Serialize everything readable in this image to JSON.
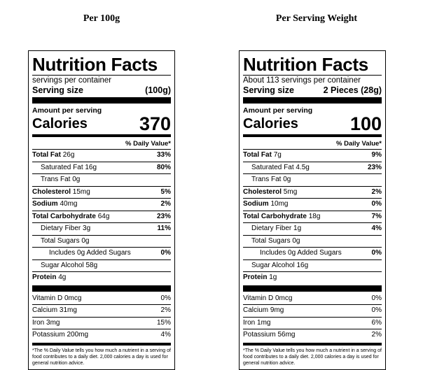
{
  "headings": {
    "left": "Per 100g",
    "right": "Per Serving Weight"
  },
  "left": {
    "title": "Nutrition Facts",
    "servings": "servings per container",
    "serving_size_label": "Serving size",
    "serving_size_value": "(100g)",
    "amount_per_serving": "Amount per serving",
    "calories_label": "Calories",
    "calories_value": "370",
    "dv_header": "% Daily Value*",
    "total_fat": {
      "label": "Total Fat",
      "amount": "26g",
      "dv": "33%"
    },
    "saturated_fat": {
      "label": "Saturated Fat 16g",
      "dv": "80%"
    },
    "trans_fat": {
      "label": "Trans Fat 0g"
    },
    "cholesterol": {
      "label": "Cholesterol",
      "amount": "15mg",
      "dv": "5%"
    },
    "sodium": {
      "label": "Sodium",
      "amount": "40mg",
      "dv": "2%"
    },
    "total_carb": {
      "label": "Total Carbohydrate",
      "amount": "64g",
      "dv": "23%"
    },
    "dietary_fiber": {
      "label": "Dietary Fiber 3g",
      "dv": "11%"
    },
    "total_sugars": {
      "label": "Total Sugars 0g"
    },
    "added_sugars": {
      "label": "Includes 0g Added Sugars",
      "dv": "0%"
    },
    "sugar_alcohol": {
      "label": "Sugar Alcohol 58g"
    },
    "protein": {
      "label": "Protein",
      "amount": "4g"
    },
    "vitamin_d": {
      "label": "Vitamin D 0mcg",
      "dv": "0%"
    },
    "calcium": {
      "label": "Calcium 31mg",
      "dv": "2%"
    },
    "iron": {
      "label": "Iron 3mg",
      "dv": "15%"
    },
    "potassium": {
      "label": "Potassium 200mg",
      "dv": "4%"
    },
    "footnote": "*The % Daily Value tells you how much a nutrient in a serving of food contributes to a daily diet. 2,000 calories a day is used for general nutrition advice."
  },
  "right": {
    "title": "Nutrition Facts",
    "servings": "About 113 servings per container",
    "serving_size_label": "Serving size",
    "serving_size_value": "2 Pieces (28g)",
    "amount_per_serving": "Amount per serving",
    "calories_label": "Calories",
    "calories_value": "100",
    "dv_header": "% Daily Value*",
    "total_fat": {
      "label": "Total Fat",
      "amount": "7g",
      "dv": "9%"
    },
    "saturated_fat": {
      "label": "Saturated Fat 4.5g",
      "dv": "23%"
    },
    "trans_fat": {
      "label": "Trans Fat 0g"
    },
    "cholesterol": {
      "label": "Cholesterol",
      "amount": "5mg",
      "dv": "2%"
    },
    "sodium": {
      "label": "Sodium",
      "amount": "10mg",
      "dv": "0%"
    },
    "total_carb": {
      "label": "Total Carbohydrate",
      "amount": "18g",
      "dv": "7%"
    },
    "dietary_fiber": {
      "label": "Dietary Fiber 1g",
      "dv": "4%"
    },
    "total_sugars": {
      "label": "Total Sugars 0g"
    },
    "added_sugars": {
      "label": "Includes 0g Added Sugars",
      "dv": "0%"
    },
    "sugar_alcohol": {
      "label": "Sugar Alcohol 16g"
    },
    "protein": {
      "label": "Protein",
      "amount": "1g"
    },
    "vitamin_d": {
      "label": "Vitamin D 0mcg",
      "dv": "0%"
    },
    "calcium": {
      "label": "Calcium 9mg",
      "dv": "0%"
    },
    "iron": {
      "label": "Iron 1mg",
      "dv": "6%"
    },
    "potassium": {
      "label": "Potassium 56mg",
      "dv": "2%"
    },
    "footnote": "*The % Daily Value tells you how much a nutrient in a serving of food contributes to a daily diet. 2,000 calories a day is used for general nutrition advice."
  }
}
